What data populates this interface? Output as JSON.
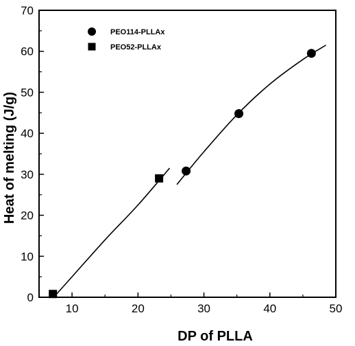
{
  "chart_data": {
    "type": "scatter",
    "xlabel": "DP of PLLA",
    "ylabel": "Heat of melting (J/g)",
    "xlim": [
      5,
      50
    ],
    "ylim": [
      0,
      70
    ],
    "x_ticks": [
      "10",
      "20",
      "30",
      "40",
      "50"
    ],
    "y_ticks": [
      "0",
      "10",
      "20",
      "30",
      "40",
      "50",
      "60",
      "70"
    ],
    "grid": false,
    "legend_position": "top-left",
    "series": [
      {
        "name": "PEO114-PLLAx",
        "marker": "circle",
        "points": [
          {
            "x": 27.3,
            "y": 30.8
          },
          {
            "x": 35.3,
            "y": 44.8
          },
          {
            "x": 46.3,
            "y": 59.5
          }
        ]
      },
      {
        "name": "PEO52-PLLAx",
        "marker": "square",
        "points": [
          {
            "x": 7.1,
            "y": 0.8
          },
          {
            "x": 23.2,
            "y": 29.0
          }
        ]
      }
    ],
    "fit_curve": [
      {
        "x": 7.5,
        "y": 0.5
      },
      {
        "x": 10,
        "y": 5.0
      },
      {
        "x": 15,
        "y": 14.0
      },
      {
        "x": 20,
        "y": 22.5
      },
      {
        "x": 24.8,
        "y": 31.5
      },
      {
        "x": 25.9,
        "y": 27.5
      },
      {
        "x": 30,
        "y": 35.5
      },
      {
        "x": 35,
        "y": 44.5
      },
      {
        "x": 40,
        "y": 52.0
      },
      {
        "x": 45,
        "y": 58.0
      },
      {
        "x": 48.5,
        "y": 61.5
      }
    ]
  }
}
